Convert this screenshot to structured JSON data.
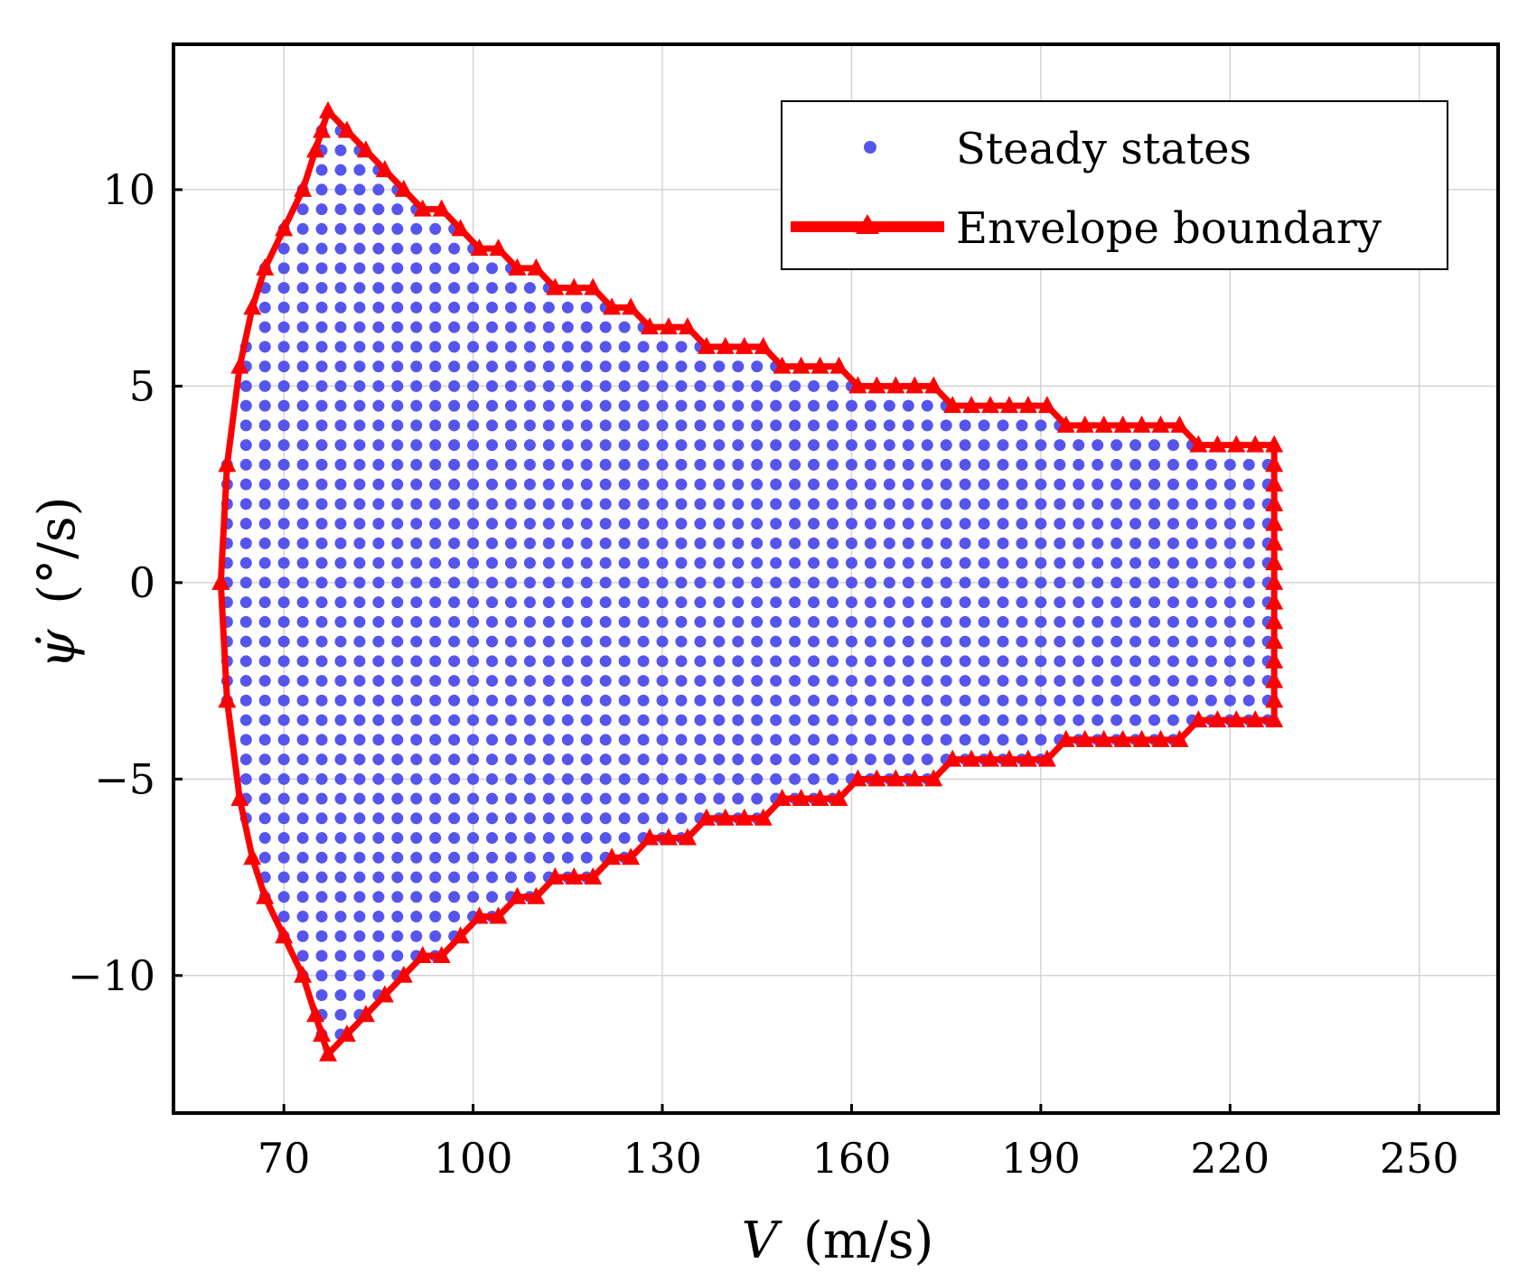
{
  "chart_data": {
    "type": "scatter",
    "xlabel_symbol": "V",
    "xlabel_unit": "(m/s)",
    "ylabel_symbol": "ψ̇",
    "ylabel_unit": "(°/s)",
    "xlim": [
      52.5,
      262.5
    ],
    "ylim": [
      -13.5,
      13.7
    ],
    "xticks": [
      70,
      100,
      130,
      160,
      190,
      220,
      250
    ],
    "xtick_labels": [
      "70",
      "100",
      "130",
      "160",
      "190",
      "220",
      "250"
    ],
    "yticks": [
      10,
      5,
      0,
      -5,
      -10
    ],
    "ytick_labels": [
      "10",
      "5",
      "0",
      "−5",
      "−10"
    ],
    "grid": true,
    "legend_position": "top-right",
    "colors": {
      "steady": "#5555ee",
      "boundary": "#ff0000"
    },
    "series": [
      {
        "name": "Steady states",
        "kind": "points",
        "grid_step_x": 3,
        "grid_step_y": 0.5,
        "note": "points fill the region inside the envelope boundary"
      },
      {
        "name": "Envelope boundary",
        "kind": "line-with-triangles",
        "upper": [
          [
            60,
            0
          ],
          [
            61,
            3
          ],
          [
            63,
            5.5
          ],
          [
            65,
            7
          ],
          [
            67,
            8
          ],
          [
            70,
            9
          ],
          [
            73,
            10
          ],
          [
            75,
            11
          ],
          [
            76,
            11.5
          ],
          [
            77,
            12
          ],
          [
            80,
            11.5
          ],
          [
            83,
            11
          ],
          [
            86,
            10.5
          ],
          [
            89,
            10
          ],
          [
            92,
            9.5
          ],
          [
            95,
            9.5
          ],
          [
            98,
            9
          ],
          [
            101,
            8.5
          ],
          [
            104,
            8.5
          ],
          [
            107,
            8
          ],
          [
            110,
            8
          ],
          [
            113,
            7.5
          ],
          [
            116,
            7.5
          ],
          [
            119,
            7.5
          ],
          [
            122,
            7
          ],
          [
            125,
            7
          ],
          [
            128,
            6.5
          ],
          [
            131,
            6.5
          ],
          [
            134,
            6.5
          ],
          [
            137,
            6
          ],
          [
            140,
            6
          ],
          [
            143,
            6
          ],
          [
            146,
            6
          ],
          [
            149,
            5.5
          ],
          [
            152,
            5.5
          ],
          [
            155,
            5.5
          ],
          [
            158,
            5.5
          ],
          [
            161,
            5
          ],
          [
            164,
            5
          ],
          [
            167,
            5
          ],
          [
            170,
            5
          ],
          [
            173,
            5
          ],
          [
            176,
            4.5
          ],
          [
            179,
            4.5
          ],
          [
            182,
            4.5
          ],
          [
            185,
            4.5
          ],
          [
            188,
            4.5
          ],
          [
            191,
            4.5
          ],
          [
            194,
            4
          ],
          [
            197,
            4
          ],
          [
            200,
            4
          ],
          [
            203,
            4
          ],
          [
            206,
            4
          ],
          [
            209,
            4
          ],
          [
            212,
            4
          ],
          [
            215,
            3.5
          ],
          [
            218,
            3.5
          ],
          [
            221,
            3.5
          ],
          [
            224,
            3.5
          ],
          [
            227,
            3.5
          ]
        ],
        "right_edge_x": 227,
        "right_edge_y": [
          3,
          2.5,
          2,
          1.5,
          1,
          0.5,
          0,
          -0.5,
          -1,
          -1.5,
          -2,
          -2.5,
          -3
        ],
        "symmetric_about_zero": true
      }
    ]
  },
  "legend": {
    "steady_label": "Steady states",
    "boundary_label": "Envelope boundary"
  }
}
